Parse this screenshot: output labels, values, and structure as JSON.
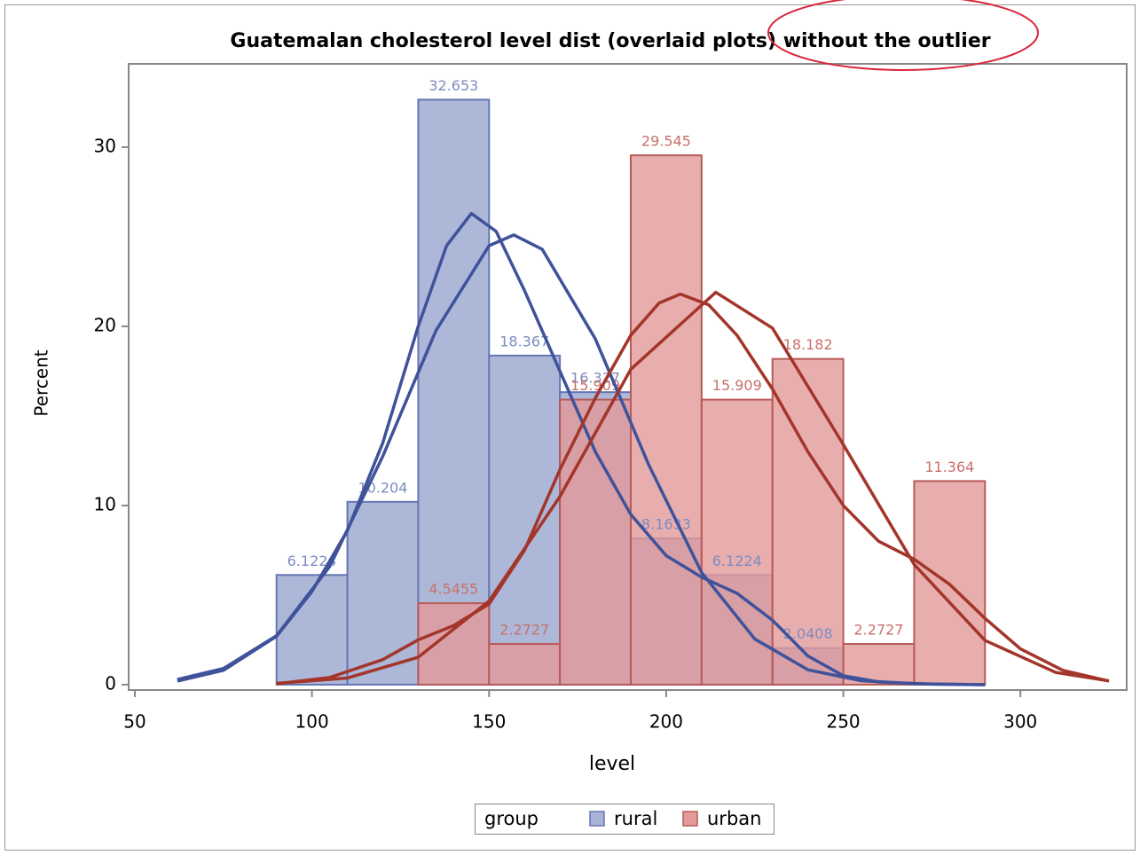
{
  "chart_data": {
    "type": "histogram",
    "title": "Guatemalan cholesterol level dist (overlaid plots) without the outlier",
    "xlabel": "level",
    "ylabel": "Percent",
    "legend_title": "group",
    "xlim": [
      48.25,
      330
    ],
    "xticks": [
      50,
      100,
      150,
      200,
      250,
      300
    ],
    "ylim": [
      -0.3,
      34.65
    ],
    "yticks": [
      0,
      10,
      20,
      30
    ],
    "series": [
      {
        "name": "rural",
        "color": "#a9b3d6",
        "edge_color": "#6676b4",
        "label_color": "#7d8cc0",
        "curve_color": "#3f529a",
        "bins": [
          90,
          110,
          130,
          150,
          170,
          190,
          210,
          230,
          250
        ],
        "values": [
          6.1224,
          10.204,
          32.653,
          18.367,
          16.327,
          8.1633,
          6.1224,
          2.0408
        ],
        "curves": [
          {
            "x": [
              62,
              75,
              90,
              105,
              120,
              135,
              150,
              157,
              165,
              180,
              195,
              210,
              225,
              240,
              255,
              270,
              290
            ],
            "values": [
              0.29,
              0.9,
              2.73,
              6.59,
              12.75,
              19.76,
              24.5,
              25.1,
              24.3,
              19.3,
              12.3,
              6.26,
              2.55,
              0.83,
              0.22,
              0.05,
              0
            ]
          },
          {
            "x": [
              62,
              75,
              90,
              100,
              110,
              120,
              130,
              138,
              145,
              152,
              160,
              170,
              180,
              190,
              200,
              210,
              220,
              230,
              240,
              250,
              260,
              275,
              290
            ],
            "values": [
              0.2,
              0.8,
              2.7,
              5.2,
              8.6,
              13.5,
              20,
              24.5,
              26.3,
              25.3,
              22,
              17.5,
              13,
              9.5,
              7.2,
              6,
              5.1,
              3.6,
              1.6,
              0.5,
              0.15,
              0.03,
              0
            ]
          }
        ]
      },
      {
        "name": "urban",
        "color": "#e29a9a",
        "edge_color": "#b85a58",
        "label_color": "#c9706b",
        "curve_color": "#a3352a",
        "bins": [
          130,
          150,
          170,
          190,
          210,
          230,
          250,
          270,
          290
        ],
        "values": [
          4.5455,
          2.2727,
          15.909,
          29.545,
          15.909,
          18.182,
          2.2727,
          11.364
        ],
        "curves": [
          {
            "x": [
              90,
              110,
              130,
              150,
              170,
              190,
              214,
              230,
              250,
              270,
              290,
              310,
              325
            ],
            "values": [
              0.07,
              0.37,
              1.53,
              4.67,
              10.5,
              17.6,
              21.9,
              19.9,
              13.4,
              6.71,
              2.47,
              0.68,
              0.21
            ]
          },
          {
            "x": [
              90,
              105,
              120,
              130,
              140,
              150,
              160,
              170,
              180,
              190,
              198,
              204,
              212,
              220,
              230,
              240,
              250,
              260,
              270,
              280,
              290,
              300,
              312,
              325
            ],
            "values": [
              0.05,
              0.4,
              1.4,
              2.5,
              3.3,
              4.5,
              7.5,
              12,
              16,
              19.5,
              21.3,
              21.8,
              21.2,
              19.5,
              16.5,
              13,
              10,
              8,
              7,
              5.6,
              3.7,
              2,
              0.8,
              0.2
            ]
          }
        ]
      }
    ]
  }
}
